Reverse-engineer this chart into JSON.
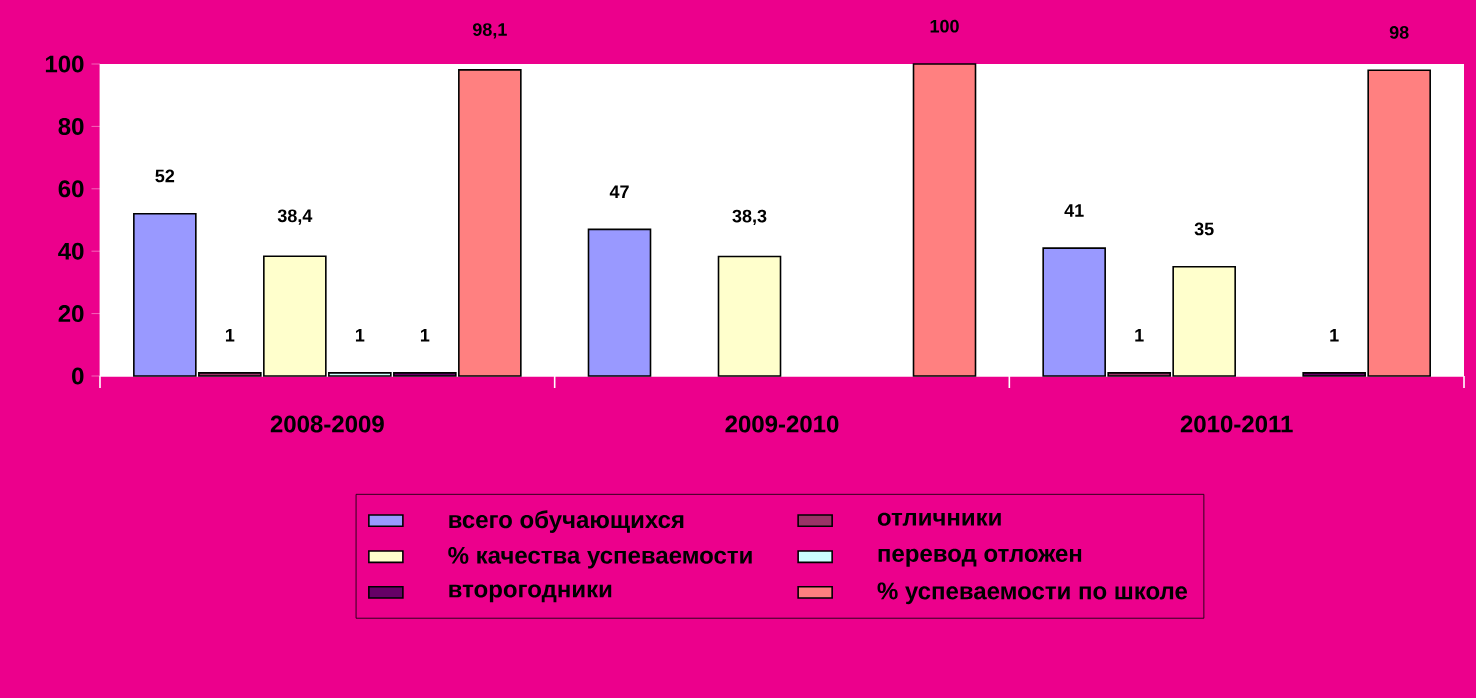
{
  "chart_data": {
    "type": "bar",
    "categories": [
      "2008-2009",
      "2009-2010",
      "2010-2011"
    ],
    "series": [
      {
        "name": "всего обучающихся",
        "color": "#9999ff",
        "values": [
          52,
          47,
          41
        ],
        "value_labels": [
          "52",
          "47",
          "41"
        ]
      },
      {
        "name": "отличники",
        "color": "#993366",
        "values": [
          1,
          null,
          1
        ],
        "value_labels": [
          "1",
          null,
          "1"
        ]
      },
      {
        "name": "% качества успеваемости",
        "color": "#ffffcc",
        "values": [
          38.4,
          38.3,
          35
        ],
        "value_labels": [
          "38,4",
          "38,3",
          "35"
        ]
      },
      {
        "name": "перевод отложен",
        "color": "#ccffff",
        "values": [
          1,
          null,
          null
        ],
        "value_labels": [
          "1",
          null,
          null
        ]
      },
      {
        "name": "второгодники",
        "color": "#660066",
        "values": [
          1,
          null,
          1
        ],
        "value_labels": [
          "1",
          null,
          "1"
        ]
      },
      {
        "name": "% успеваемости по школе",
        "color": "#ff8080",
        "values": [
          98.1,
          100,
          98
        ],
        "value_labels": [
          "98,1",
          "100",
          "98"
        ]
      }
    ],
    "ylim": [
      0,
      100
    ],
    "yticks": [
      0,
      20,
      40,
      60,
      80,
      100
    ],
    "legend": "bottom"
  }
}
